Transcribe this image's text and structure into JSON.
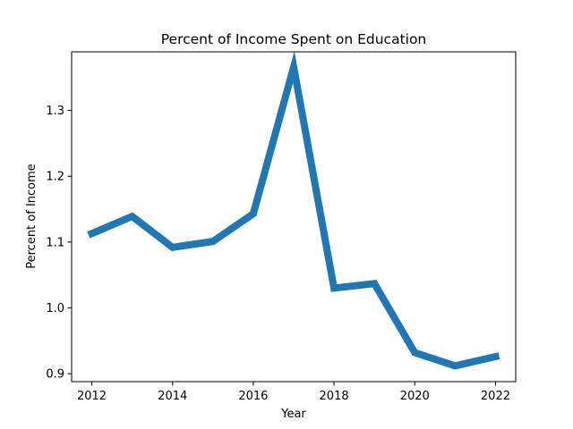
{
  "chart_data": {
    "type": "line",
    "title": "Percent of Income Spent on Education",
    "xlabel": "Year",
    "ylabel": "Percent of Income",
    "x": [
      2012,
      2013,
      2014,
      2015,
      2016,
      2017,
      2018,
      2019,
      2020,
      2021,
      2022
    ],
    "series": [
      {
        "values": [
          1.113,
          1.139,
          1.092,
          1.101,
          1.143,
          1.366,
          1.03,
          1.037,
          0.932,
          0.912,
          0.926
        ],
        "color": "#1f77b4"
      }
    ],
    "xlim": [
      2011.5,
      2022.5
    ],
    "ylim": [
      0.888,
      1.389
    ],
    "xticks": [
      2012,
      2014,
      2016,
      2018,
      2020,
      2022
    ],
    "yticks": [
      0.9,
      1.0,
      1.1,
      1.2,
      1.3
    ],
    "ytick_labels": [
      "0.9",
      "1.0",
      "1.1",
      "1.2",
      "1.3"
    ],
    "grid": false,
    "legend": "none"
  }
}
